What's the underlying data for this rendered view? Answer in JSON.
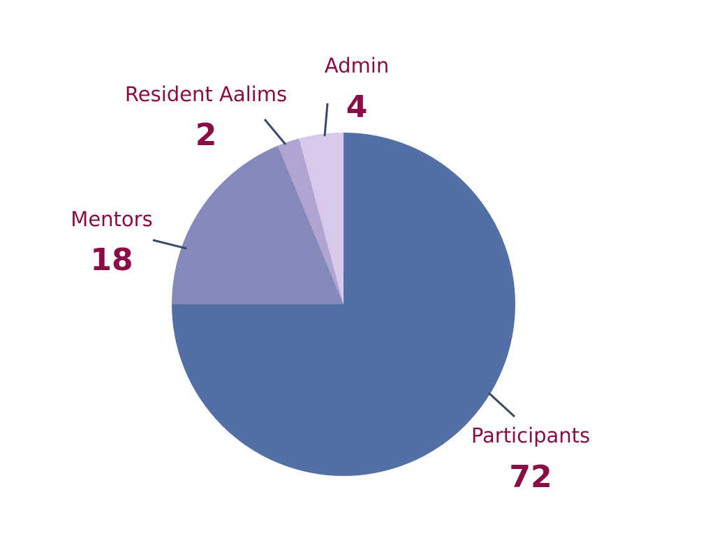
{
  "chart_data": {
    "type": "pie",
    "categories": [
      "Participants",
      "Mentors",
      "Resident Aalims",
      "Admin"
    ],
    "values": [
      72,
      18,
      2,
      4
    ],
    "value_labels": [
      "72",
      "18",
      "2",
      "4"
    ],
    "colors": [
      "#5270a6",
      "#8589b9",
      "#afa4d2",
      "#d8c8ea"
    ],
    "label_color": "#8a0e45",
    "leader_color": "#3a4a63",
    "start": "12 o'clock",
    "direction": "clockwise",
    "legend": "none",
    "title": ""
  }
}
